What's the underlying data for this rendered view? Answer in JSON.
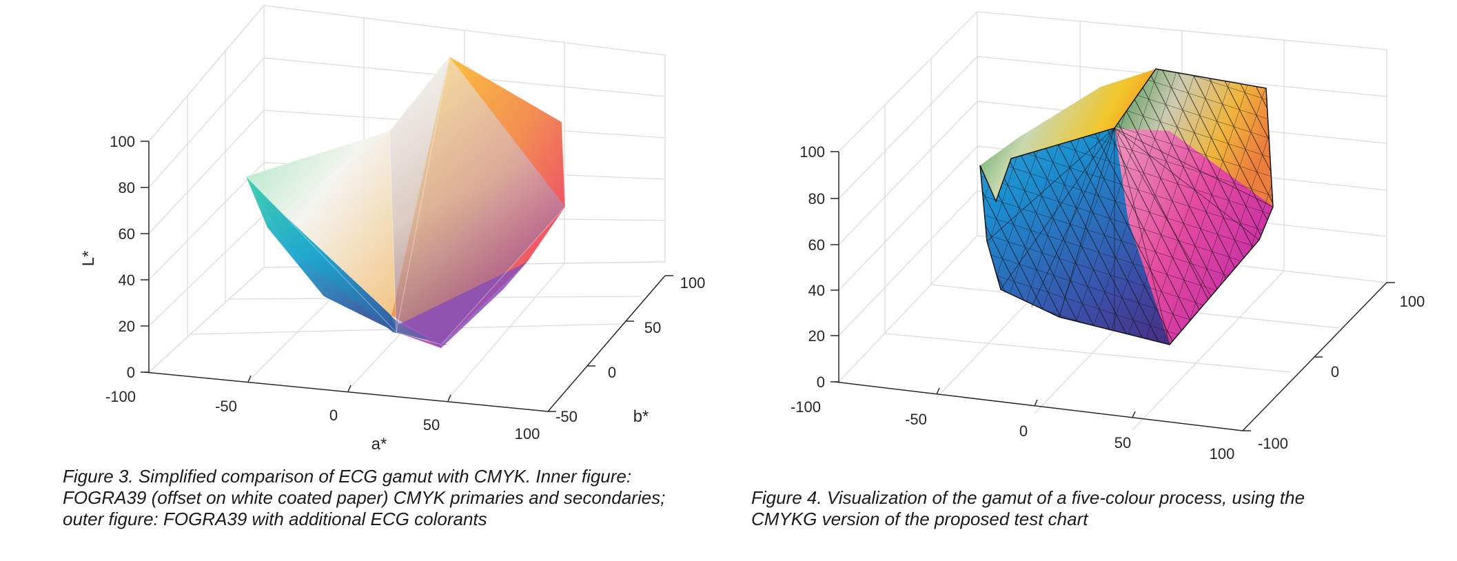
{
  "figure3": {
    "caption_lines": [
      "Figure 3. Simplified comparison of ECG gamut with CMYK. Inner figure:",
      "FOGRA39 (offset on white coated paper) CMYK primaries and secondaries;",
      "outer figure: FOGRA39 with additional ECG colorants"
    ],
    "axes": {
      "x_label": "a*",
      "y_label": "b*",
      "z_label": "L*",
      "x_ticks": [
        "-100",
        "-50",
        "0",
        "50",
        "100"
      ],
      "y_ticks": [
        "-50",
        "0",
        "50",
        "100"
      ],
      "z_ticks": [
        "0",
        "20",
        "40",
        "60",
        "80",
        "100"
      ]
    }
  },
  "figure4": {
    "caption_lines": [
      "Figure 4. Visualization of the gamut of a five-colour process, using the",
      "CMYKG version of the proposed test chart"
    ],
    "axes": {
      "x_ticks": [
        "-100",
        "-50",
        "0",
        "50",
        "100"
      ],
      "y_ticks": [
        "-100",
        "0",
        "100"
      ],
      "z_ticks": [
        "0",
        "20",
        "40",
        "60",
        "80",
        "100"
      ]
    }
  },
  "colors": {
    "yellow": "#ffd700",
    "orange": "#f08a2c",
    "magenta": "#e8186e",
    "blue": "#1b9ad6",
    "cyan_green": "#3ac7a0",
    "green": "#1f8f3a",
    "violet": "#5a2a8c",
    "gridline": "#dcdcdc",
    "axis": "#262626"
  }
}
